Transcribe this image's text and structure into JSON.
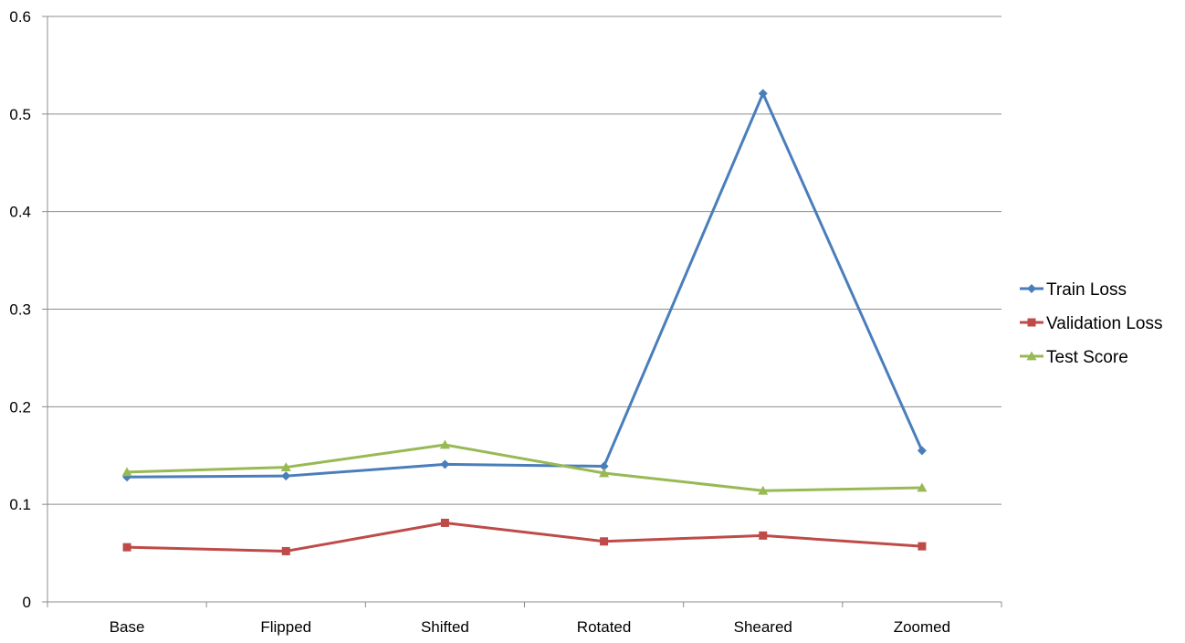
{
  "chart_data": {
    "type": "line",
    "categories": [
      "Base",
      "Flipped",
      "Shifted",
      "Rotated",
      "Sheared",
      "Zoomed"
    ],
    "series": [
      {
        "name": "Train Loss",
        "color": "#4a7ebb",
        "marker": "diamond",
        "values": [
          0.128,
          0.129,
          0.141,
          0.139,
          0.521,
          0.155
        ]
      },
      {
        "name": "Validation Loss",
        "color": "#be4b48",
        "marker": "square",
        "values": [
          0.056,
          0.052,
          0.081,
          0.062,
          0.068,
          0.057
        ]
      },
      {
        "name": "Test Score",
        "color": "#98b954",
        "marker": "triangle",
        "values": [
          0.133,
          0.138,
          0.161,
          0.132,
          0.114,
          0.117
        ]
      }
    ],
    "ylim": [
      0,
      0.6
    ],
    "yticks": [
      "0",
      "0.1",
      "0.2",
      "0.3",
      "0.4",
      "0.5",
      "0.6"
    ],
    "grid": true,
    "legend_position": "right"
  }
}
